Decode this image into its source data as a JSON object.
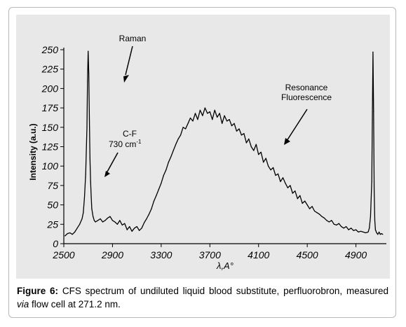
{
  "caption": {
    "label": "Figure 6:",
    "text_part1": " CFS spectrum of undiluted liquid blood substitute, perfluorobron, measured ",
    "text_italic": "via",
    "text_part2": " flow cell at 271.2 nm."
  },
  "colors": {
    "panel_background": "#e8e8e8",
    "trace": "#000000"
  },
  "chart_data": {
    "type": "line",
    "title": "",
    "xlabel": "λ,A°",
    "ylabel": "Intensity (a.u.)",
    "xlim": [
      2500,
      5150
    ],
    "ylim": [
      0,
      250
    ],
    "x_ticks": [
      2500,
      2900,
      3300,
      3700,
      4100,
      4500,
      4900
    ],
    "y_ticks": [
      0,
      25,
      50,
      75,
      100,
      125,
      150,
      175,
      200,
      225,
      250
    ],
    "grid": false,
    "annotations": {
      "raman": "Raman",
      "cf_line1": "C-F",
      "cf_line2_value": "730 cm",
      "cf_line2_sup": "-1",
      "resonance_line1": "Resonance",
      "resonance_line2": "Fluorescence"
    },
    "series": [
      {
        "x": [
          2510,
          2530,
          2550,
          2570,
          2590,
          2610,
          2630,
          2650,
          2660,
          2670,
          2680,
          2690,
          2695,
          2700,
          2705,
          2710,
          2715,
          2720,
          2725,
          2730,
          2740,
          2750,
          2760,
          2780,
          2800,
          2820,
          2840,
          2860,
          2880,
          2900,
          2920,
          2940,
          2960,
          2980,
          3000,
          3020,
          3040,
          3060,
          3080,
          3100,
          3120,
          3140,
          3160,
          3180,
          3200,
          3220,
          3240,
          3260,
          3280,
          3300,
          3320,
          3340,
          3360,
          3380,
          3400,
          3420,
          3440,
          3460,
          3480,
          3500,
          3520,
          3540,
          3560,
          3580,
          3600,
          3620,
          3640,
          3660,
          3680,
          3700,
          3720,
          3740,
          3760,
          3780,
          3800,
          3820,
          3840,
          3860,
          3880,
          3900,
          3920,
          3940,
          3960,
          3980,
          4000,
          4020,
          4040,
          4060,
          4080,
          4100,
          4120,
          4140,
          4160,
          4180,
          4200,
          4220,
          4240,
          4260,
          4280,
          4300,
          4320,
          4340,
          4360,
          4380,
          4400,
          4420,
          4440,
          4460,
          4480,
          4500,
          4520,
          4540,
          4560,
          4580,
          4600,
          4620,
          4640,
          4660,
          4680,
          4700,
          4720,
          4740,
          4760,
          4780,
          4800,
          4820,
          4840,
          4860,
          4880,
          4900,
          4920,
          4940,
          4960,
          4980,
          5000,
          5010,
          5020,
          5030,
          5035,
          5040,
          5045,
          5050,
          5055,
          5060,
          5070,
          5080,
          5090,
          5100,
          5110,
          5120
        ],
        "y": [
          10,
          13,
          14,
          12,
          15,
          20,
          25,
          32,
          40,
          60,
          90,
          150,
          210,
          248,
          220,
          160,
          110,
          80,
          60,
          45,
          35,
          30,
          28,
          30,
          32,
          28,
          30,
          33,
          35,
          30,
          28,
          25,
          30,
          24,
          26,
          18,
          22,
          16,
          20,
          22,
          17,
          20,
          27,
          32,
          38,
          45,
          55,
          62,
          70,
          78,
          88,
          95,
          105,
          112,
          120,
          128,
          135,
          140,
          150,
          148,
          155,
          162,
          158,
          168,
          160,
          172,
          165,
          175,
          168,
          170,
          160,
          172,
          163,
          168,
          155,
          165,
          158,
          160,
          152,
          155,
          145,
          148,
          140,
          142,
          130,
          135,
          125,
          120,
          128,
          115,
          118,
          105,
          110,
          100,
          95,
          98,
          88,
          90,
          80,
          85,
          78,
          72,
          75,
          65,
          68,
          58,
          62,
          52,
          55,
          50,
          45,
          48,
          42,
          40,
          38,
          35,
          33,
          30,
          28,
          30,
          25,
          24,
          26,
          22,
          20,
          22,
          18,
          20,
          17,
          18,
          15,
          16,
          15,
          14,
          15,
          20,
          35,
          80,
          160,
          247,
          170,
          70,
          30,
          18,
          14,
          12,
          15,
          12,
          13,
          12
        ]
      }
    ]
  }
}
